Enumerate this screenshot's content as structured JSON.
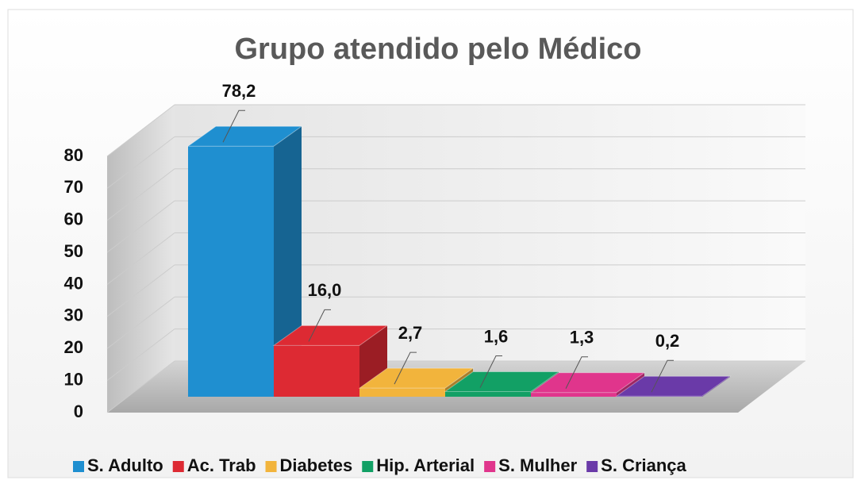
{
  "chart_data": {
    "type": "bar",
    "title": "Grupo atendido pelo Médico",
    "series": [
      {
        "name": "S. Adulto",
        "color": "#1f8fd0",
        "values": [
          78.2
        ],
        "value_labels": [
          "78,2"
        ]
      },
      {
        "name": "Ac. Trab",
        "color": "#dd2a33",
        "values": [
          16.0
        ],
        "value_labels": [
          "16,0"
        ]
      },
      {
        "name": "Diabetes",
        "color": "#f2b43c",
        "values": [
          2.7
        ],
        "value_labels": [
          "2,7"
        ]
      },
      {
        "name": "Hip. Arterial",
        "color": "#12a065",
        "values": [
          1.6
        ],
        "value_labels": [
          "1,6"
        ]
      },
      {
        "name": "S. Mulher",
        "color": "#e0358c",
        "values": [
          1.3
        ],
        "value_labels": [
          "1,3"
        ]
      },
      {
        "name": "S. Criança",
        "color": "#6a3aa8",
        "values": [
          0.2
        ],
        "value_labels": [
          "0,2"
        ]
      }
    ],
    "ylim": [
      0,
      80
    ],
    "yticks": [
      0,
      10,
      20,
      30,
      40,
      50,
      60,
      70,
      80
    ],
    "grid": true,
    "legend": "bottom"
  }
}
